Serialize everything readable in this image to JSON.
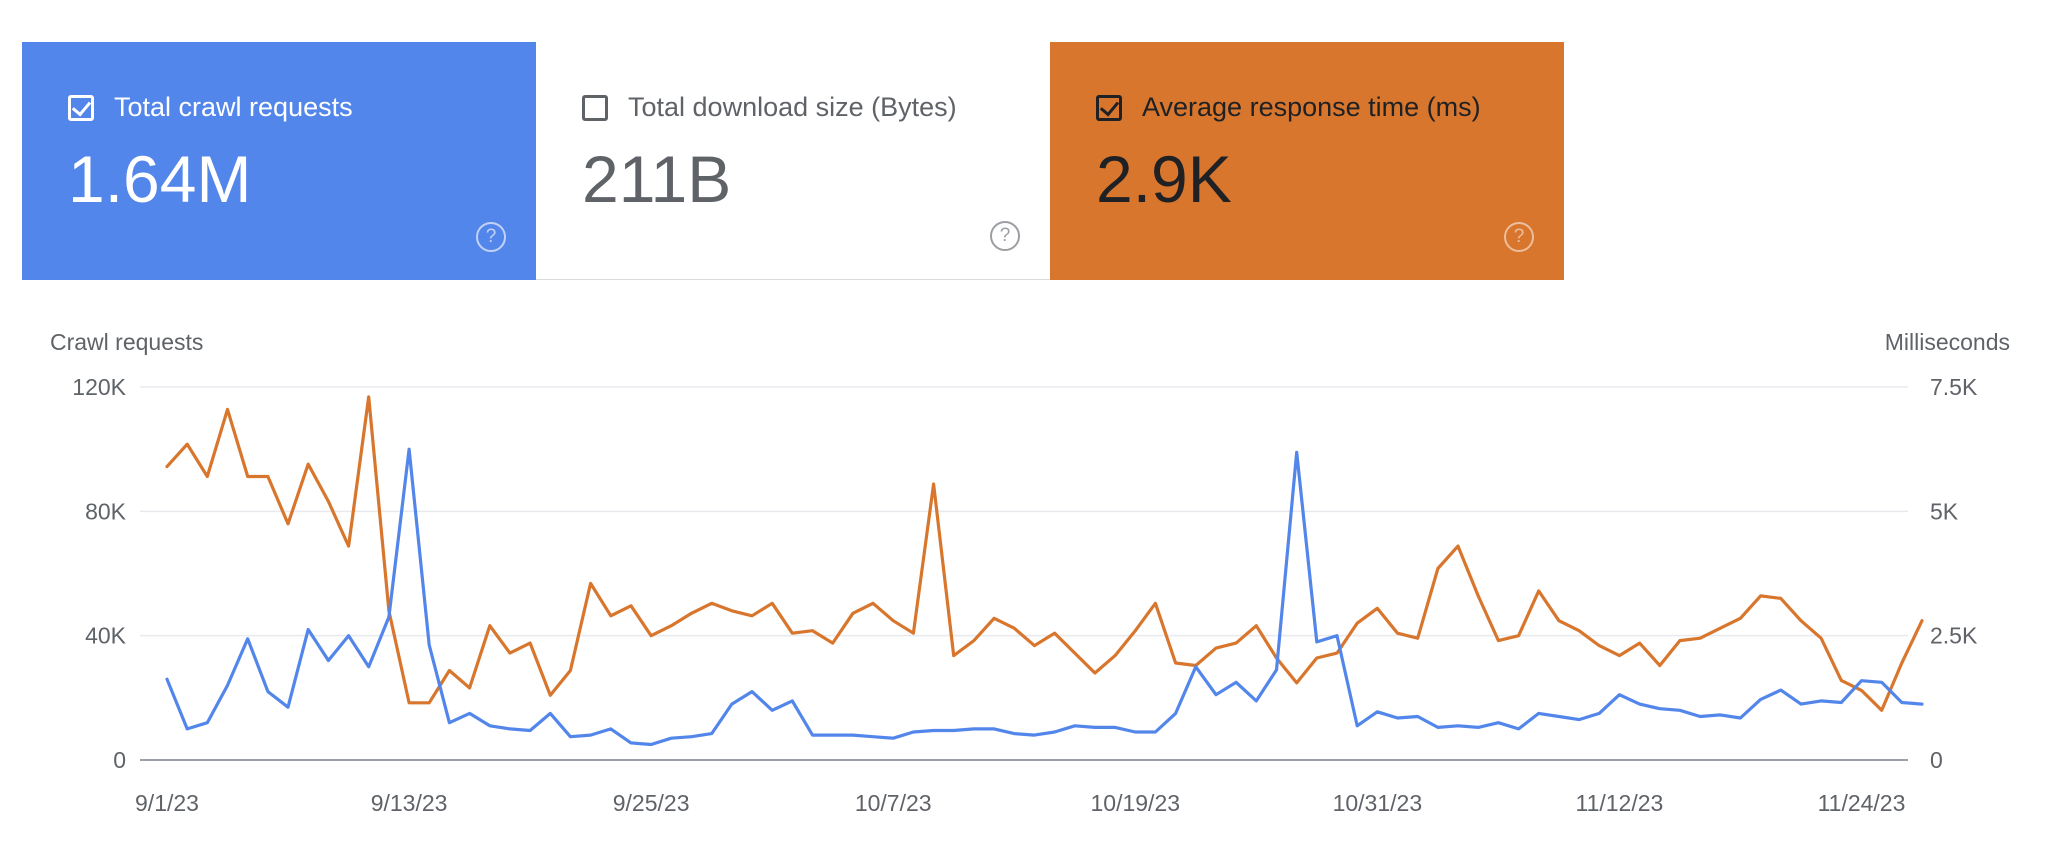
{
  "cards": [
    {
      "label": "Total crawl requests",
      "value": "1.64M",
      "checked": true,
      "help": "?"
    },
    {
      "label": "Total download size (Bytes)",
      "value": "211B",
      "checked": false,
      "help": "?"
    },
    {
      "label": "Average response time (ms)",
      "value": "2.9K",
      "checked": true,
      "help": "?"
    }
  ],
  "colors": {
    "requests": "#5386ea",
    "response": "#d8762d",
    "grid": "#e8eaed",
    "axis": "#5f6368"
  },
  "chart_data": {
    "type": "line",
    "left_axis_label": "Crawl requests",
    "right_axis_label": "Milliseconds",
    "left_ticks": [
      "0",
      "40K",
      "80K",
      "120K"
    ],
    "right_ticks": [
      "0",
      "2.5K",
      "5K",
      "7.5K"
    ],
    "ylim_left": [
      0,
      120000
    ],
    "ylim_right": [
      0,
      7500
    ],
    "x_ticks": [
      "9/1/23",
      "9/13/23",
      "9/25/23",
      "10/7/23",
      "10/19/23",
      "10/31/23",
      "11/12/23",
      "11/24/23"
    ],
    "start_date": "9/1/23",
    "grid": true,
    "series": [
      {
        "name": "Total crawl requests",
        "axis": "left",
        "values": [
          26000,
          10000,
          12000,
          24000,
          39000,
          22000,
          17000,
          42000,
          32000,
          40000,
          30000,
          46000,
          100000,
          37000,
          12000,
          15000,
          11000,
          10000,
          9500,
          15000,
          7500,
          8000,
          10000,
          5500,
          5000,
          7000,
          7500,
          8500,
          18000,
          22000,
          16000,
          19000,
          8000,
          8000,
          8000,
          7500,
          7000,
          9000,
          9500,
          9500,
          10000,
          10000,
          8500,
          8000,
          9000,
          11000,
          10500,
          10500,
          9000,
          9000,
          15000,
          30000,
          21000,
          25000,
          19000,
          29000,
          99000,
          38000,
          40000,
          11000,
          15500,
          13500,
          14000,
          10500,
          11000,
          10500,
          12000,
          10000,
          15000,
          14000,
          13000,
          15000,
          21000,
          18000,
          16500,
          16000,
          14000,
          14500,
          13500,
          19500,
          22500,
          18000,
          19000,
          18500,
          25500,
          25000,
          18500,
          18000
        ]
      },
      {
        "name": "Average response time (ms)",
        "axis": "right",
        "values": [
          5900,
          6350,
          5700,
          7050,
          5700,
          5700,
          4750,
          5950,
          5200,
          4300,
          7300,
          3000,
          1150,
          1150,
          1800,
          1450,
          2700,
          2150,
          2350,
          1300,
          1800,
          3550,
          2900,
          3100,
          2500,
          2700,
          2950,
          3150,
          3000,
          2900,
          3150,
          2550,
          2600,
          2350,
          2950,
          3150,
          2800,
          2550,
          5550,
          2100,
          2400,
          2850,
          2650,
          2300,
          2550,
          2150,
          1750,
          2100,
          2600,
          3150,
          1950,
          1900,
          2250,
          2350,
          2700,
          2050,
          1550,
          2050,
          2150,
          2750,
          3050,
          2550,
          2450,
          3850,
          4300,
          3300,
          2400,
          2500,
          3400,
          2800,
          2600,
          2300,
          2100,
          2350,
          1900,
          2400,
          2450,
          2650,
          2850,
          3300,
          3250,
          2800,
          2450,
          1600,
          1400,
          1000,
          1950,
          2800
        ]
      }
    ]
  }
}
